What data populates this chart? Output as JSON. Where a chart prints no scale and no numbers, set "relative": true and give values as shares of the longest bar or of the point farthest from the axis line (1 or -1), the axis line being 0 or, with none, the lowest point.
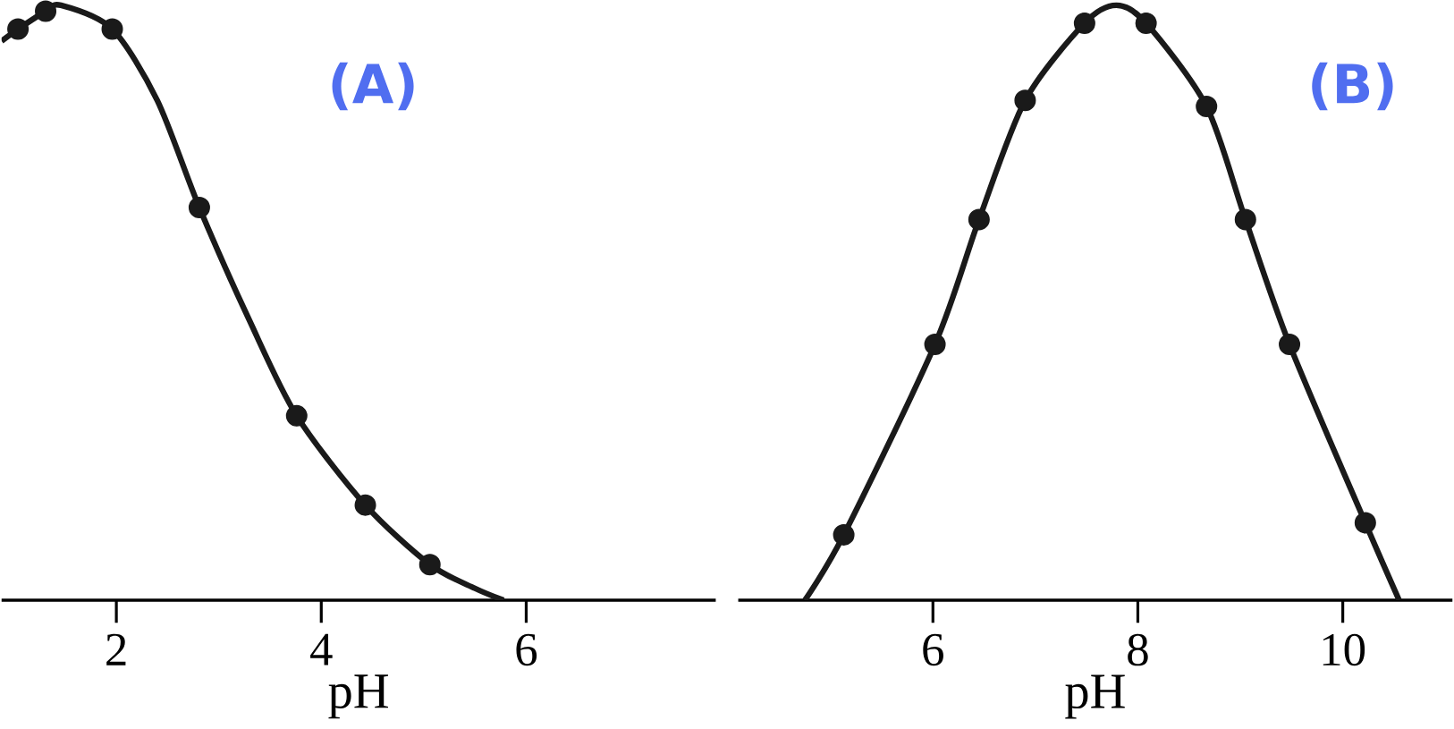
{
  "chart_data": [
    {
      "type": "line",
      "relative": true,
      "xlabel": "pH",
      "xlim": [
        0.88,
        7.85
      ],
      "xticks": [
        2,
        4,
        6
      ],
      "annotations": [
        "(A)"
      ],
      "series": [
        {
          "color": "#1a1a1a",
          "marker": "none",
          "x": [
            0.88,
            1.04,
            1.31,
            1.46,
            1.96,
            2.4,
            2.81,
            3.3,
            3.76,
            4.43,
            5.06,
            5.5,
            5.78
          ],
          "values": [
            0.94,
            0.96,
            0.99,
            1.0,
            0.96,
            0.84,
            0.66,
            0.47,
            0.31,
            0.16,
            0.06,
            0.02,
            0
          ]
        },
        {
          "type": "scatter",
          "color": "#1a1a1a",
          "marker": "circle",
          "x": [
            1.04,
            1.31,
            1.96,
            2.81,
            3.76,
            4.43,
            5.06
          ],
          "values": [
            0.96,
            0.99,
            0.96,
            0.66,
            0.31,
            0.16,
            0.06
          ]
        }
      ]
    },
    {
      "type": "line",
      "relative": true,
      "xlabel": "pH",
      "xlim": [
        4.1,
        11.07
      ],
      "xticks": [
        6,
        8,
        10
      ],
      "annotations": [
        "(B)"
      ],
      "series": [
        {
          "color": "#1a1a1a",
          "marker": "none",
          "x": [
            4.75,
            5.13,
            6.02,
            6.45,
            6.9,
            7.48,
            7.79,
            8.08,
            8.67,
            9.05,
            9.48,
            10.22,
            10.55
          ],
          "values": [
            0,
            0.11,
            0.43,
            0.64,
            0.84,
            0.97,
            1.0,
            0.97,
            0.83,
            0.64,
            0.43,
            0.13,
            0
          ]
        },
        {
          "type": "scatter",
          "color": "#1a1a1a",
          "marker": "circle",
          "x": [
            5.13,
            6.02,
            6.45,
            6.9,
            7.48,
            8.08,
            8.67,
            9.05,
            9.48,
            10.22
          ],
          "values": [
            0.11,
            0.43,
            0.64,
            0.84,
            0.97,
            0.97,
            0.83,
            0.64,
            0.43,
            0.13
          ]
        }
      ]
    }
  ]
}
